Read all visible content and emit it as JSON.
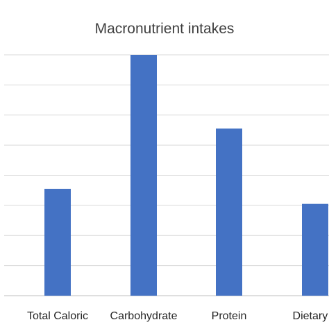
{
  "chart_data": {
    "type": "bar",
    "title": "Macronutrient intakes",
    "categories": [
      "Total Caloric",
      "Carbohydrate",
      "Protein",
      "Dietary F"
    ],
    "values": [
      3.55,
      8.0,
      5.55,
      3.05
    ],
    "ylim": [
      0,
      8
    ],
    "grid": true,
    "legend": "none",
    "xlabel": "",
    "ylabel": "",
    "colors": {
      "bar": "#4472c4",
      "grid": "#d9d9d9"
    }
  }
}
